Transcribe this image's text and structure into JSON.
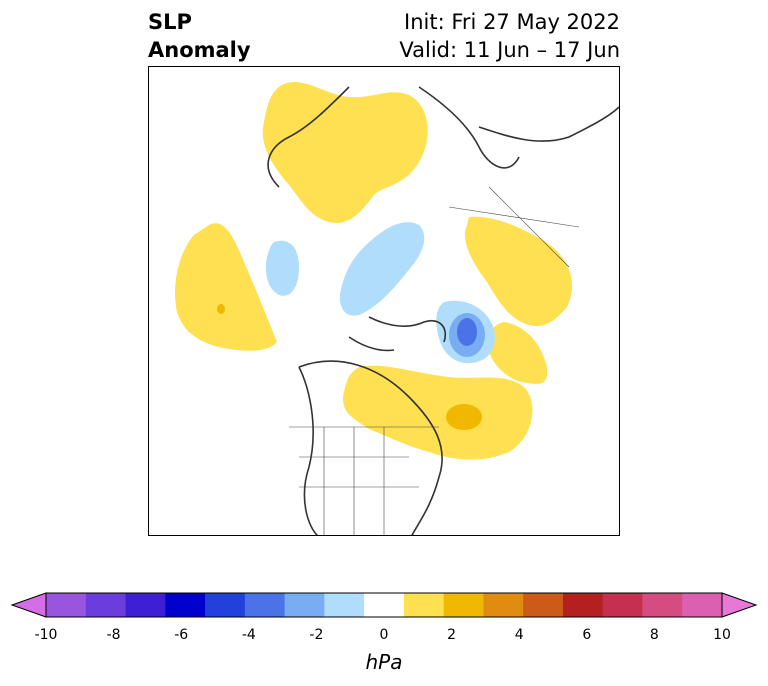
{
  "title": {
    "left_line1": "SLP",
    "left_line2": "Anomaly",
    "init": "Init: Fri 27 May 2022",
    "valid": "Valid: 11 Jun – 17 Jun"
  },
  "colorbar": {
    "unit": "hPa",
    "ticks": [
      "-10",
      "-8",
      "-6",
      "-4",
      "-2",
      "0",
      "2",
      "4",
      "6",
      "8",
      "10"
    ],
    "colors": [
      "#d56ee6",
      "#9a55de",
      "#6b3ddc",
      "#3f1fd4",
      "#0000cc",
      "#2240dc",
      "#4c72e8",
      "#78acf3",
      "#b0ddfb",
      "#ffffff",
      "#ffe050",
      "#f0b800",
      "#e08c10",
      "#cc5a18",
      "#b42020",
      "#c63050",
      "#d44c80",
      "#dc60b0",
      "#e878d8"
    ]
  },
  "map": {
    "region": "North America / Northern Hemisphere",
    "anomaly_colors": {
      "positive_light": "#ffe050",
      "positive_mid": "#f0b800",
      "negative_light": "#b0ddfb",
      "negative_mid": "#78acf3",
      "negative_strong": "#4c72e8"
    }
  }
}
